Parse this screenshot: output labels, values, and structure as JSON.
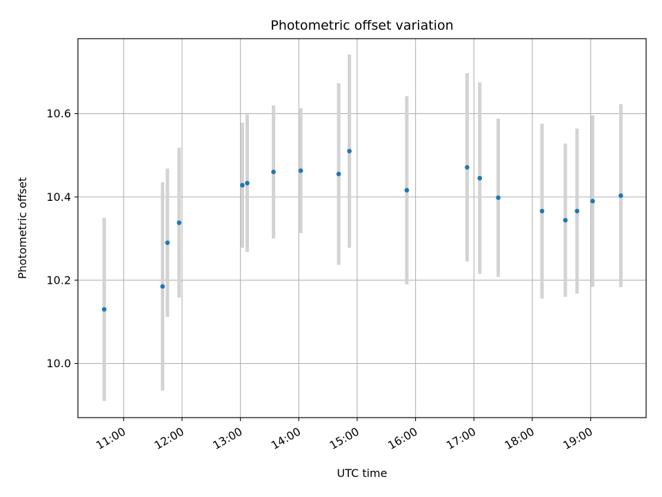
{
  "chart_data": {
    "type": "scatter",
    "title": "Photometric offset variation",
    "xlabel": "UTC time",
    "ylabel": "Photometric offset",
    "x_ticks": [
      "11:00",
      "12:00",
      "13:00",
      "14:00",
      "15:00",
      "16:00",
      "17:00",
      "18:00",
      "19:00"
    ],
    "y_ticks": [
      "10.0",
      "10.2",
      "10.4",
      "10.6"
    ],
    "xlim": [
      "10:13",
      "19:57"
    ],
    "ylim": [
      9.87,
      10.78
    ],
    "grid": true,
    "marker_color": "#1f77b4",
    "errorbar_color": "#d3d3d3",
    "series": [
      {
        "points": [
          {
            "x": "10:40",
            "y": 10.13,
            "err": 0.22
          },
          {
            "x": "11:40",
            "y": 10.185,
            "err": 0.25
          },
          {
            "x": "11:45",
            "y": 10.29,
            "err": 0.178
          },
          {
            "x": "11:57",
            "y": 10.338,
            "err": 0.18
          },
          {
            "x": "13:02",
            "y": 10.428,
            "err": 0.15
          },
          {
            "x": "13:07",
            "y": 10.433,
            "err": 0.165
          },
          {
            "x": "13:34",
            "y": 10.46,
            "err": 0.16
          },
          {
            "x": "14:02",
            "y": 10.463,
            "err": 0.15
          },
          {
            "x": "14:41",
            "y": 10.455,
            "err": 0.218
          },
          {
            "x": "14:52",
            "y": 10.51,
            "err": 0.232
          },
          {
            "x": "15:51",
            "y": 10.416,
            "err": 0.226
          },
          {
            "x": "16:53",
            "y": 10.471,
            "err": 0.226
          },
          {
            "x": "17:06",
            "y": 10.445,
            "err": 0.23
          },
          {
            "x": "17:25",
            "y": 10.398,
            "err": 0.19
          },
          {
            "x": "18:10",
            "y": 10.366,
            "err": 0.21
          },
          {
            "x": "18:34",
            "y": 10.344,
            "err": 0.184
          },
          {
            "x": "18:46",
            "y": 10.366,
            "err": 0.198
          },
          {
            "x": "19:02",
            "y": 10.39,
            "err": 0.206
          },
          {
            "x": "19:31",
            "y": 10.403,
            "err": 0.22
          }
        ]
      }
    ]
  }
}
